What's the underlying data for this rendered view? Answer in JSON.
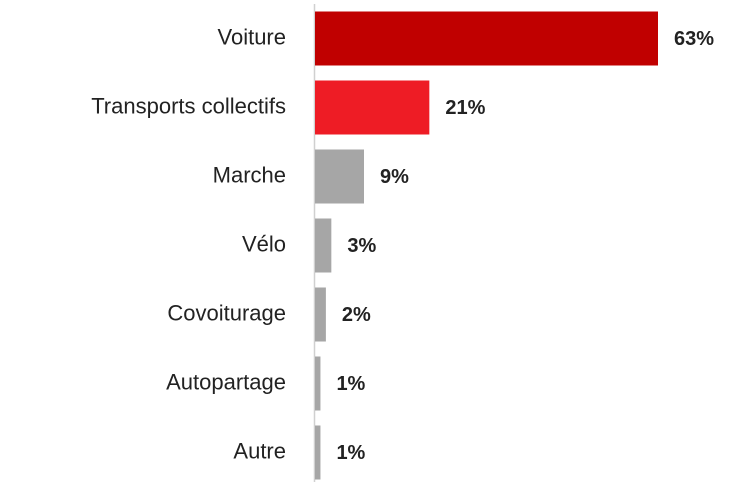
{
  "chart_data": {
    "type": "bar",
    "orientation": "horizontal",
    "categories": [
      "Voiture",
      "Transports collectifs",
      "Marche",
      "Vélo",
      "Covoiturage",
      "Autopartage",
      "Autre"
    ],
    "values": [
      63,
      21,
      9,
      3,
      2,
      1,
      1
    ],
    "value_labels": [
      "63%",
      "21%",
      "9%",
      "3%",
      "2%",
      "1%",
      "1%"
    ],
    "colors": [
      "#c00000",
      "#ee1c25",
      "#a6a6a6",
      "#a6a6a6",
      "#a6a6a6",
      "#a6a6a6",
      "#a6a6a6"
    ]
  }
}
